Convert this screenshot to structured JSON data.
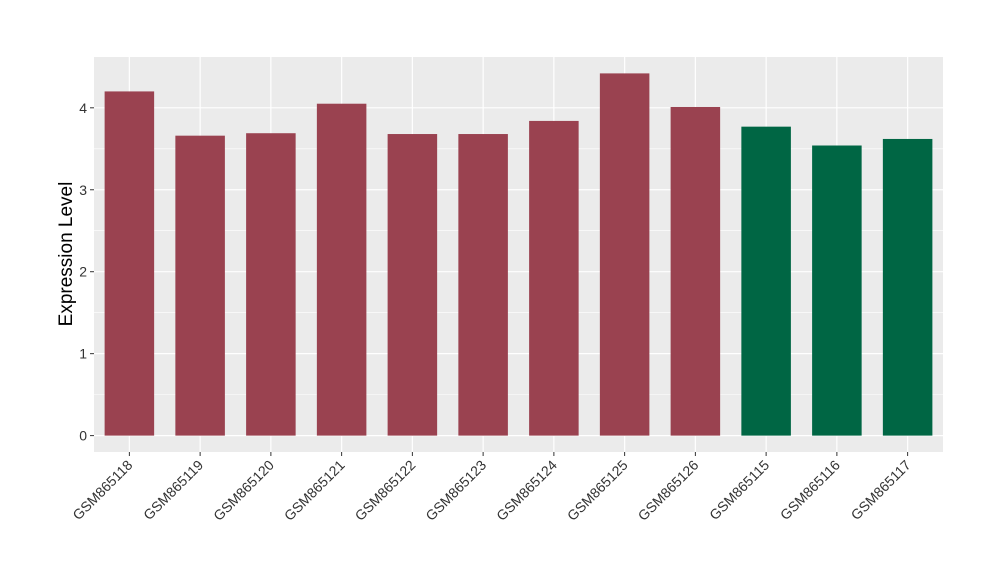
{
  "chart_data": {
    "type": "bar",
    "title": "",
    "xlabel": "",
    "ylabel": "Expression Level",
    "ylim": [
      -0.2,
      4.62
    ],
    "yticks": [
      0,
      1,
      2,
      3,
      4
    ],
    "grid": true,
    "legend": "none",
    "background": "#EBEBEB",
    "gridline_color": "#FFFFFF",
    "categories": [
      "GSM865118",
      "GSM865119",
      "GSM865120",
      "GSM865121",
      "GSM865122",
      "GSM865123",
      "GSM865124",
      "GSM865125",
      "GSM865126",
      "GSM865115",
      "GSM865116",
      "GSM865117"
    ],
    "values": [
      4.2,
      3.66,
      3.69,
      4.05,
      3.68,
      3.68,
      3.84,
      4.42,
      4.01,
      3.77,
      3.54,
      3.62
    ],
    "bar_colors": [
      "#9A4250",
      "#9A4250",
      "#9A4250",
      "#9A4250",
      "#9A4250",
      "#9A4250",
      "#9A4250",
      "#9A4250",
      "#9A4250",
      "#006644",
      "#006644",
      "#006644"
    ]
  }
}
